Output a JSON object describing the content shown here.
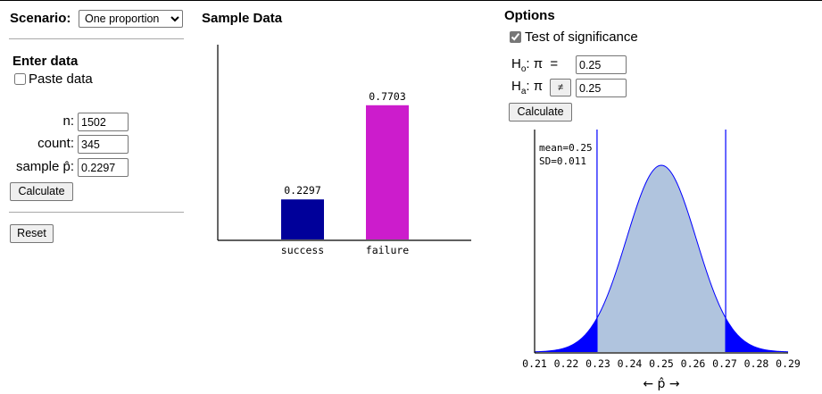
{
  "scenario": {
    "label": "Scenario:",
    "selected": "One proportion"
  },
  "enter_data": {
    "title": "Enter data",
    "paste_label": "Paste data",
    "paste_checked": false,
    "n_label": "n:",
    "n_value": "1502",
    "count_label": "count:",
    "count_value": "345",
    "phat_label": "sample p̂:",
    "phat_value": "0.2297",
    "calculate_label": "Calculate",
    "reset_label": "Reset"
  },
  "sample_data": {
    "title": "Sample Data"
  },
  "options": {
    "title": "Options",
    "test_label": "Test of significance",
    "test_checked": true,
    "h0_letter": "H",
    "h0_sub": "o",
    "h0_rest": ": π  =",
    "h0_value": "0.25",
    "ha_letter": "H",
    "ha_sub": "a",
    "ha_rest": ": π",
    "ha_operator": "≠",
    "ha_value": "0.25",
    "calculate_label": "Calculate"
  },
  "colors": {
    "success_bar": "#00009a",
    "failure_bar": "#cc1ccc",
    "curve_fill": "#b0c4de",
    "tail_fill": "#0000ff",
    "curve_line": "#0000ff"
  },
  "chart_data": [
    {
      "type": "bar",
      "categories": [
        "success",
        "failure"
      ],
      "values": [
        0.2297,
        0.7703
      ],
      "value_labels": [
        "0.2297",
        "0.7703"
      ],
      "ylim": [
        0,
        1
      ],
      "title": "",
      "xlabel": "",
      "ylabel": ""
    },
    {
      "type": "area",
      "distribution": "normal",
      "mean": 0.25,
      "sd": 0.011,
      "annotation_lines": [
        "mean=0.25",
        "SD=0.011"
      ],
      "xlim": [
        0.21,
        0.29
      ],
      "x_ticks": [
        "0.21",
        "0.22",
        "0.23",
        "0.24",
        "0.25",
        "0.26",
        "0.27",
        "0.28",
        "0.29"
      ],
      "cutoffs": [
        0.2297,
        0.2703
      ],
      "tails_shaded": "both",
      "xlabel": "← p̂ →"
    }
  ]
}
